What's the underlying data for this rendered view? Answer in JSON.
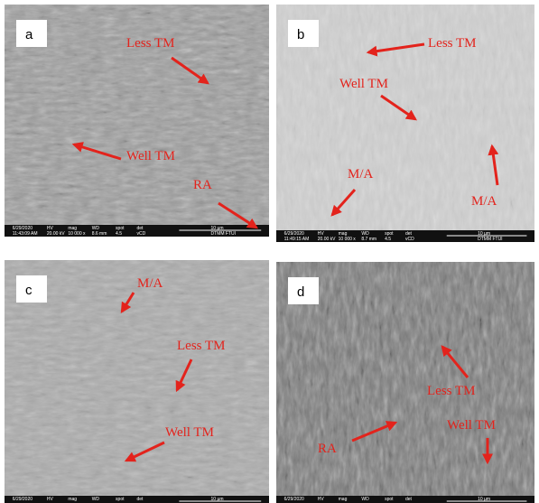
{
  "panels": [
    {
      "label": "a",
      "annotations": [
        {
          "text": "Less TM"
        },
        {
          "text": "Well TM"
        },
        {
          "text": "RA"
        }
      ],
      "info_bar": {
        "top": [
          "6/29/2020",
          "HV",
          "mag",
          "WD",
          "spot",
          "det",
          "10 µm"
        ],
        "bottom": [
          "11:43:09 AM",
          "20.00 kV",
          "10 000 x",
          "8.6 mm",
          "4.5",
          "vCD",
          "DTMM FTUI"
        ]
      }
    },
    {
      "label": "b",
      "annotations": [
        {
          "text": "Less TM"
        },
        {
          "text": "Well TM"
        },
        {
          "text": "M/A"
        },
        {
          "text": "M/A"
        }
      ],
      "info_bar": {
        "top": [
          "6/29/2020",
          "HV",
          "mag",
          "WD",
          "spot",
          "det",
          "10 µm"
        ],
        "bottom": [
          "11:49:15 AM",
          "20.00 kV",
          "10 000 x",
          "8.7 mm",
          "4.5",
          "vCD",
          "DTMM FTUI"
        ]
      }
    },
    {
      "label": "c",
      "annotations": [
        {
          "text": "M/A"
        },
        {
          "text": "Less TM"
        },
        {
          "text": "Well TM"
        }
      ],
      "info_bar": {
        "top": [
          "6/29/2020",
          "HV",
          "mag",
          "WD",
          "spot",
          "det",
          "10 µm"
        ]
      }
    },
    {
      "label": "d",
      "annotations": [
        {
          "text": "Less TM"
        },
        {
          "text": "RA"
        },
        {
          "text": "Well TM"
        }
      ],
      "info_bar": {
        "top": [
          "6/29/2020",
          "HV",
          "mag",
          "WD",
          "spot",
          "det",
          "10 µm"
        ]
      }
    }
  ]
}
